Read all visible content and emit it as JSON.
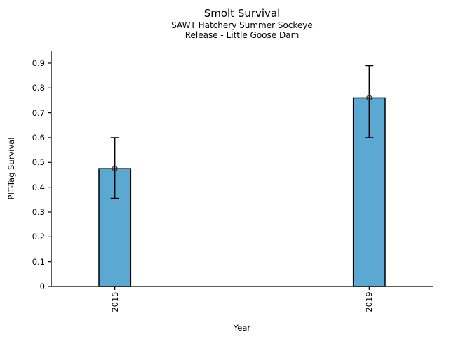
{
  "chart_data": {
    "type": "bar",
    "title": "Smolt Survival",
    "subtitle_line1": "SAWT Hatchery Summer Sockeye",
    "subtitle_line2": "Release - Little Goose Dam",
    "xlabel": "Year",
    "ylabel": "PIT-Tag Survival",
    "categories": [
      "2015",
      "2019"
    ],
    "x": [
      2015,
      2019
    ],
    "series": [
      {
        "name": "PIT-Tag Survival",
        "values": [
          0.475,
          0.76
        ],
        "error_low": [
          0.355,
          0.6
        ],
        "error_high": [
          0.6,
          0.89
        ]
      }
    ],
    "xlim": [
      2014,
      2020
    ],
    "ylim": [
      0,
      0.948
    ],
    "yticks": [
      0,
      0.1,
      0.2,
      0.3,
      0.4,
      0.5,
      0.6,
      0.7,
      0.8,
      0.9
    ],
    "ytick_labels": [
      "0",
      "0.1",
      "0.2",
      "0.3",
      "0.4",
      "0.5",
      "0.6",
      "0.7",
      "0.8",
      "0.9"
    ],
    "xtick_rotation_degrees": 90,
    "bar_width_x_units": 0.5,
    "grid": false,
    "legend": "none",
    "marker": "open-circle",
    "colors": {
      "bar_fill": "#5BA8D2",
      "bar_edge": "#000000",
      "error_bar": "#000000",
      "marker_edge": "#3a3a3a",
      "axis": "#000000",
      "text": "#000000",
      "background": "#ffffff"
    }
  }
}
